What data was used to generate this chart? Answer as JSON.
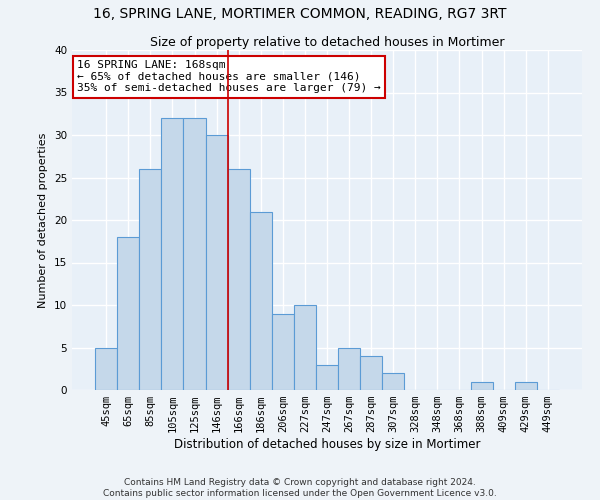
{
  "title": "16, SPRING LANE, MORTIMER COMMON, READING, RG7 3RT",
  "subtitle": "Size of property relative to detached houses in Mortimer",
  "xlabel": "Distribution of detached houses by size in Mortimer",
  "ylabel": "Number of detached properties",
  "categories": [
    "45sqm",
    "65sqm",
    "85sqm",
    "105sqm",
    "125sqm",
    "146sqm",
    "166sqm",
    "186sqm",
    "206sqm",
    "227sqm",
    "247sqm",
    "267sqm",
    "287sqm",
    "307sqm",
    "328sqm",
    "348sqm",
    "368sqm",
    "388sqm",
    "409sqm",
    "429sqm",
    "449sqm"
  ],
  "values": [
    5,
    18,
    26,
    32,
    32,
    30,
    26,
    21,
    9,
    10,
    3,
    5,
    4,
    2,
    0,
    0,
    0,
    1,
    0,
    1,
    0
  ],
  "bar_color": "#c5d8ea",
  "bar_edge_color": "#5b9bd5",
  "ylim": [
    0,
    40
  ],
  "yticks": [
    0,
    5,
    10,
    15,
    20,
    25,
    30,
    35,
    40
  ],
  "property_line_x": 5.5,
  "property_line_color": "#cc0000",
  "annotation_line1": "16 SPRING LANE: 168sqm",
  "annotation_line2": "← 65% of detached houses are smaller (146)",
  "annotation_line3": "35% of semi-detached houses are larger (79) →",
  "annotation_box_color": "#ffffff",
  "annotation_box_edge_color": "#cc0000",
  "footer_line1": "Contains HM Land Registry data © Crown copyright and database right 2024.",
  "footer_line2": "Contains public sector information licensed under the Open Government Licence v3.0.",
  "background_color": "#eef3f8",
  "plot_background_color": "#e8f0f8",
  "grid_color": "#ffffff",
  "title_fontsize": 10,
  "subtitle_fontsize": 9,
  "xlabel_fontsize": 8.5,
  "ylabel_fontsize": 8,
  "tick_fontsize": 7.5,
  "footer_fontsize": 6.5,
  "annotation_fontsize": 8
}
